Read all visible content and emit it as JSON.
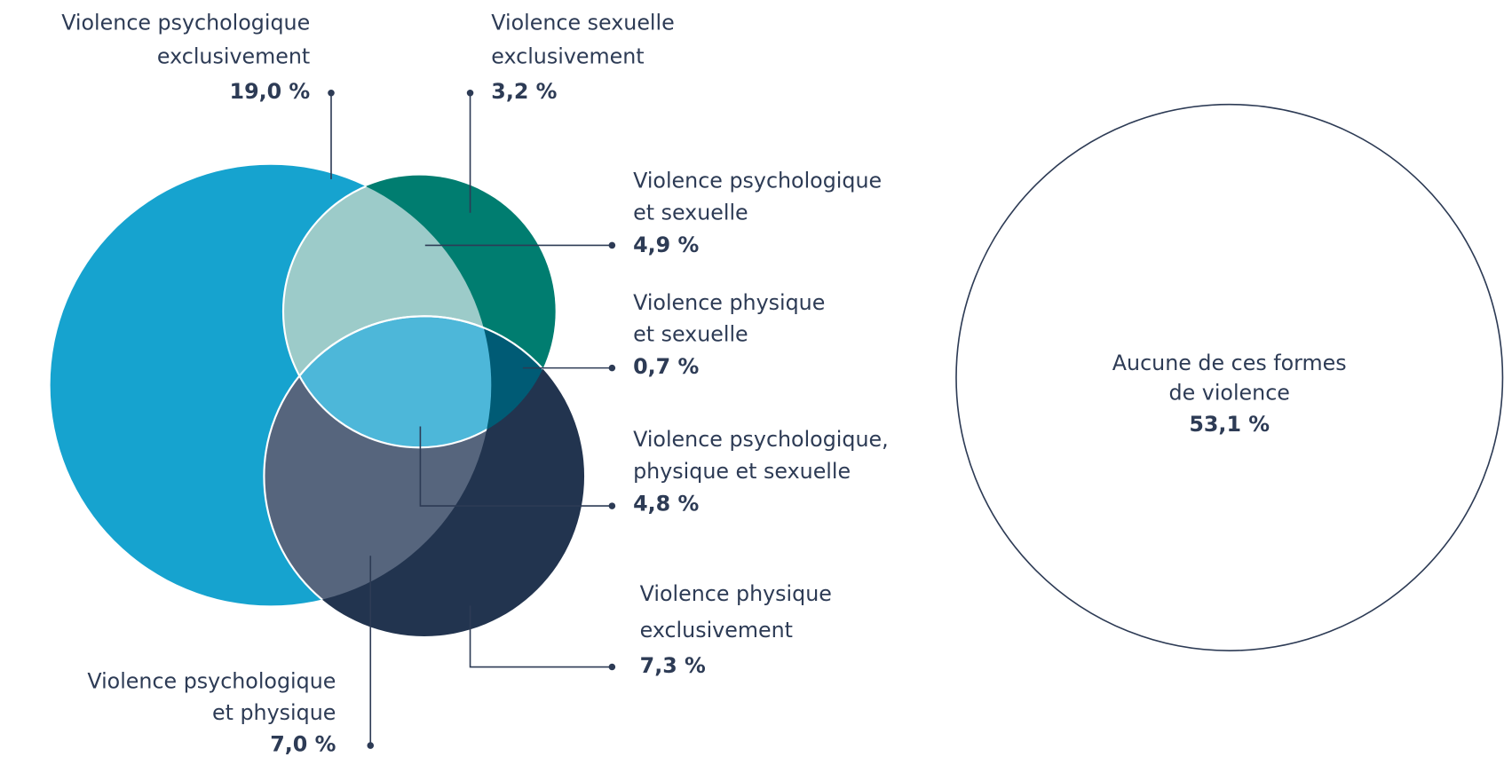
{
  "regions": [
    {
      "label_lines": [
        "Violence psychologique",
        "exclusivement"
      ],
      "value": "19,0 %"
    },
    {
      "label_lines": [
        "Violence sexuelle",
        "exclusivement"
      ],
      "value": "3,2 %"
    },
    {
      "label_lines": [
        "Violence psychologique",
        "et sexuelle"
      ],
      "value": "4,9 %"
    },
    {
      "label_lines": [
        "Violence physique",
        "et sexuelle"
      ],
      "value": "0,7 %"
    },
    {
      "label_lines": [
        "Violence psychologique,",
        "physique et sexuelle"
      ],
      "value": "4,8 %"
    },
    {
      "label_lines": [
        "Violence physique",
        "exclusivement"
      ],
      "value": "7,3 %"
    },
    {
      "label_lines": [
        "Violence psychologique",
        "et physique"
      ],
      "value": "7,0 %"
    }
  ],
  "none": {
    "label_lines": [
      "Aucune de ces formes",
      "de violence"
    ],
    "value": "53,1 %"
  }
}
